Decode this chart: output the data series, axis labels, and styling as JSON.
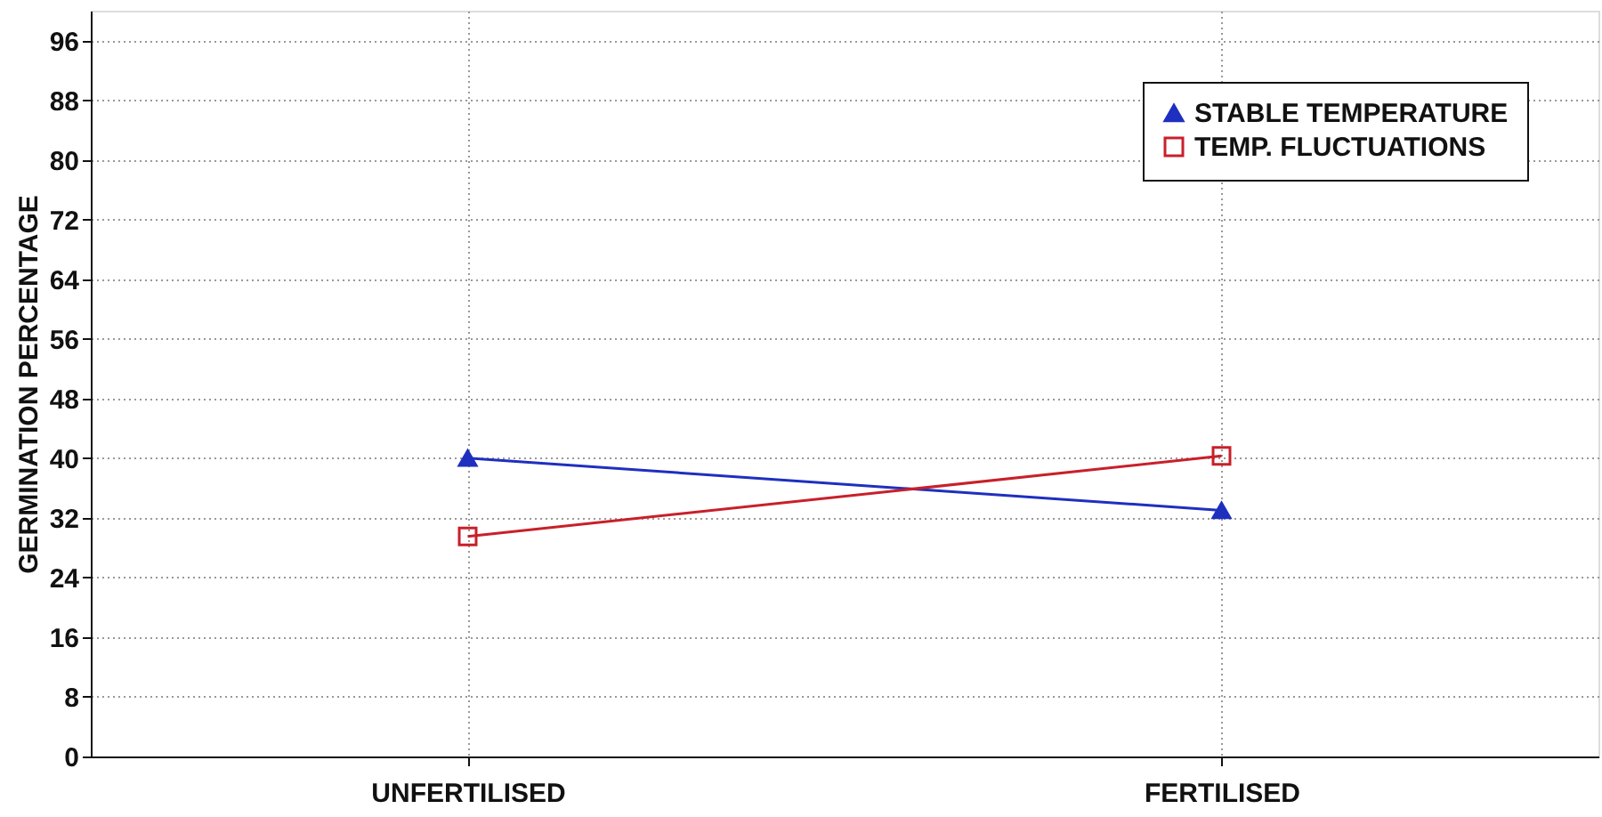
{
  "chart_data": {
    "type": "line",
    "ylabel": "GERMINATION PERCENTAGE",
    "categories": [
      "UNFERTILISED",
      "FERTILISED"
    ],
    "series": [
      {
        "name": "STABLE TEMPERATURE",
        "color": "#1f2fbf",
        "marker": "triangle",
        "values": [
          40,
          33
        ]
      },
      {
        "name": "TEMP. FLUCTUATIONS",
        "color": "#c8202a",
        "marker": "square",
        "values": [
          29.5,
          40.3
        ]
      }
    ],
    "ylim": [
      0,
      100
    ],
    "yticks": [
      0,
      8,
      16,
      24,
      32,
      40,
      48,
      56,
      64,
      72,
      80,
      88,
      96
    ],
    "grid": true,
    "legend": "top right"
  }
}
